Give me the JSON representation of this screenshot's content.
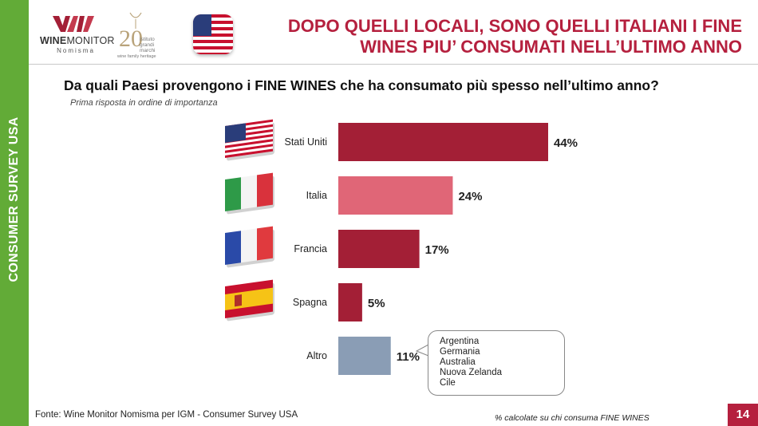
{
  "side_label": "CONSUMER SURVEY USA",
  "logo": {
    "name_bold": "WINE",
    "name_rest": "MONITOR",
    "sub": "Nomisma"
  },
  "partner_logo": {
    "number": "20",
    "line1": "istituto",
    "line2": "grandi marchi",
    "bottom": "wine family heritage"
  },
  "title": {
    "line1": "DOPO QUELLI LOCALI, SONO QUELLI ITALIANI I FINE",
    "line2": "WINES PIU’ CONSUMATI NELL’ULTIMO ANNO"
  },
  "question": "Da quali Paesi provengono i FINE WINES che ha consumato più spesso nell’ultimo anno?",
  "subquestion": "Prima risposta in ordine di importanza",
  "chart_data": {
    "type": "bar",
    "orientation": "horizontal",
    "categories": [
      "Stati Uniti",
      "Italia",
      "Francia",
      "Spagna",
      "Altro"
    ],
    "values": [
      44,
      24,
      17,
      5,
      11
    ],
    "value_labels": [
      "44%",
      "24%",
      "17%",
      "5%",
      "11%"
    ],
    "colors": [
      "#a31f36",
      "#e06677",
      "#a31f36",
      "#a31f36",
      "#8a9db5"
    ],
    "flags": [
      "usa-flag",
      "italy-flag",
      "france-flag",
      "spain-flag",
      ""
    ],
    "xlim": [
      0,
      50
    ]
  },
  "other_note": [
    "Argentina",
    "Germania",
    "Australia",
    "Nuova Zelanda",
    "Cile"
  ],
  "footer": {
    "source": "Fonte: Wine Monitor Nomisma per IGM - Consumer Survey USA",
    "note": "% calcolate su chi consuma FINE WINES"
  },
  "page_number": "14"
}
